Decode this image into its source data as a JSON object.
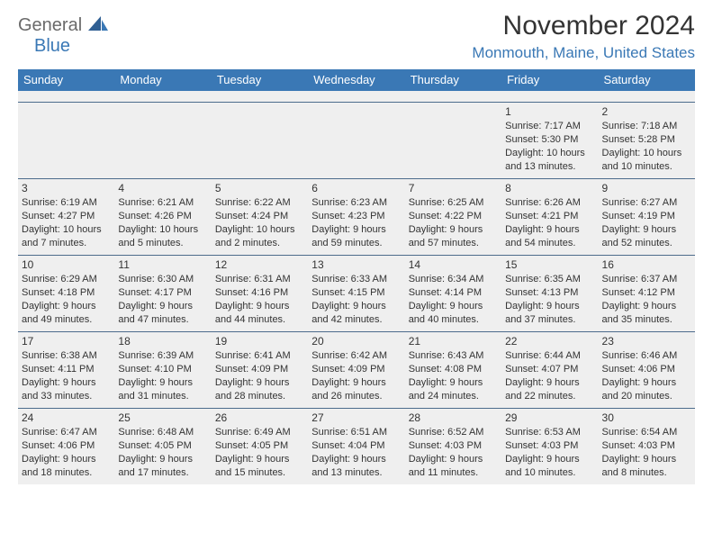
{
  "brand": {
    "top": "General",
    "bottom": "Blue"
  },
  "title": "November 2024",
  "location": "Monmouth, Maine, United States",
  "colors": {
    "header_bar": "#3a78b5",
    "cell_bg": "#efefef",
    "rule": "#4d6c8c",
    "brand_gray": "#6a6a6a",
    "brand_blue": "#3a78b5",
    "text": "#333333"
  },
  "weekdays": [
    "Sunday",
    "Monday",
    "Tuesday",
    "Wednesday",
    "Thursday",
    "Friday",
    "Saturday"
  ],
  "weeks": [
    [
      null,
      null,
      null,
      null,
      null,
      {
        "n": "1",
        "sr": "Sunrise: 7:17 AM",
        "ss": "Sunset: 5:30 PM",
        "dl1": "Daylight: 10 hours",
        "dl2": "and 13 minutes."
      },
      {
        "n": "2",
        "sr": "Sunrise: 7:18 AM",
        "ss": "Sunset: 5:28 PM",
        "dl1": "Daylight: 10 hours",
        "dl2": "and 10 minutes."
      }
    ],
    [
      {
        "n": "3",
        "sr": "Sunrise: 6:19 AM",
        "ss": "Sunset: 4:27 PM",
        "dl1": "Daylight: 10 hours",
        "dl2": "and 7 minutes."
      },
      {
        "n": "4",
        "sr": "Sunrise: 6:21 AM",
        "ss": "Sunset: 4:26 PM",
        "dl1": "Daylight: 10 hours",
        "dl2": "and 5 minutes."
      },
      {
        "n": "5",
        "sr": "Sunrise: 6:22 AM",
        "ss": "Sunset: 4:24 PM",
        "dl1": "Daylight: 10 hours",
        "dl2": "and 2 minutes."
      },
      {
        "n": "6",
        "sr": "Sunrise: 6:23 AM",
        "ss": "Sunset: 4:23 PM",
        "dl1": "Daylight: 9 hours",
        "dl2": "and 59 minutes."
      },
      {
        "n": "7",
        "sr": "Sunrise: 6:25 AM",
        "ss": "Sunset: 4:22 PM",
        "dl1": "Daylight: 9 hours",
        "dl2": "and 57 minutes."
      },
      {
        "n": "8",
        "sr": "Sunrise: 6:26 AM",
        "ss": "Sunset: 4:21 PM",
        "dl1": "Daylight: 9 hours",
        "dl2": "and 54 minutes."
      },
      {
        "n": "9",
        "sr": "Sunrise: 6:27 AM",
        "ss": "Sunset: 4:19 PM",
        "dl1": "Daylight: 9 hours",
        "dl2": "and 52 minutes."
      }
    ],
    [
      {
        "n": "10",
        "sr": "Sunrise: 6:29 AM",
        "ss": "Sunset: 4:18 PM",
        "dl1": "Daylight: 9 hours",
        "dl2": "and 49 minutes."
      },
      {
        "n": "11",
        "sr": "Sunrise: 6:30 AM",
        "ss": "Sunset: 4:17 PM",
        "dl1": "Daylight: 9 hours",
        "dl2": "and 47 minutes."
      },
      {
        "n": "12",
        "sr": "Sunrise: 6:31 AM",
        "ss": "Sunset: 4:16 PM",
        "dl1": "Daylight: 9 hours",
        "dl2": "and 44 minutes."
      },
      {
        "n": "13",
        "sr": "Sunrise: 6:33 AM",
        "ss": "Sunset: 4:15 PM",
        "dl1": "Daylight: 9 hours",
        "dl2": "and 42 minutes."
      },
      {
        "n": "14",
        "sr": "Sunrise: 6:34 AM",
        "ss": "Sunset: 4:14 PM",
        "dl1": "Daylight: 9 hours",
        "dl2": "and 40 minutes."
      },
      {
        "n": "15",
        "sr": "Sunrise: 6:35 AM",
        "ss": "Sunset: 4:13 PM",
        "dl1": "Daylight: 9 hours",
        "dl2": "and 37 minutes."
      },
      {
        "n": "16",
        "sr": "Sunrise: 6:37 AM",
        "ss": "Sunset: 4:12 PM",
        "dl1": "Daylight: 9 hours",
        "dl2": "and 35 minutes."
      }
    ],
    [
      {
        "n": "17",
        "sr": "Sunrise: 6:38 AM",
        "ss": "Sunset: 4:11 PM",
        "dl1": "Daylight: 9 hours",
        "dl2": "and 33 minutes."
      },
      {
        "n": "18",
        "sr": "Sunrise: 6:39 AM",
        "ss": "Sunset: 4:10 PM",
        "dl1": "Daylight: 9 hours",
        "dl2": "and 31 minutes."
      },
      {
        "n": "19",
        "sr": "Sunrise: 6:41 AM",
        "ss": "Sunset: 4:09 PM",
        "dl1": "Daylight: 9 hours",
        "dl2": "and 28 minutes."
      },
      {
        "n": "20",
        "sr": "Sunrise: 6:42 AM",
        "ss": "Sunset: 4:09 PM",
        "dl1": "Daylight: 9 hours",
        "dl2": "and 26 minutes."
      },
      {
        "n": "21",
        "sr": "Sunrise: 6:43 AM",
        "ss": "Sunset: 4:08 PM",
        "dl1": "Daylight: 9 hours",
        "dl2": "and 24 minutes."
      },
      {
        "n": "22",
        "sr": "Sunrise: 6:44 AM",
        "ss": "Sunset: 4:07 PM",
        "dl1": "Daylight: 9 hours",
        "dl2": "and 22 minutes."
      },
      {
        "n": "23",
        "sr": "Sunrise: 6:46 AM",
        "ss": "Sunset: 4:06 PM",
        "dl1": "Daylight: 9 hours",
        "dl2": "and 20 minutes."
      }
    ],
    [
      {
        "n": "24",
        "sr": "Sunrise: 6:47 AM",
        "ss": "Sunset: 4:06 PM",
        "dl1": "Daylight: 9 hours",
        "dl2": "and 18 minutes."
      },
      {
        "n": "25",
        "sr": "Sunrise: 6:48 AM",
        "ss": "Sunset: 4:05 PM",
        "dl1": "Daylight: 9 hours",
        "dl2": "and 17 minutes."
      },
      {
        "n": "26",
        "sr": "Sunrise: 6:49 AM",
        "ss": "Sunset: 4:05 PM",
        "dl1": "Daylight: 9 hours",
        "dl2": "and 15 minutes."
      },
      {
        "n": "27",
        "sr": "Sunrise: 6:51 AM",
        "ss": "Sunset: 4:04 PM",
        "dl1": "Daylight: 9 hours",
        "dl2": "and 13 minutes."
      },
      {
        "n": "28",
        "sr": "Sunrise: 6:52 AM",
        "ss": "Sunset: 4:03 PM",
        "dl1": "Daylight: 9 hours",
        "dl2": "and 11 minutes."
      },
      {
        "n": "29",
        "sr": "Sunrise: 6:53 AM",
        "ss": "Sunset: 4:03 PM",
        "dl1": "Daylight: 9 hours",
        "dl2": "and 10 minutes."
      },
      {
        "n": "30",
        "sr": "Sunrise: 6:54 AM",
        "ss": "Sunset: 4:03 PM",
        "dl1": "Daylight: 9 hours",
        "dl2": "and 8 minutes."
      }
    ]
  ]
}
